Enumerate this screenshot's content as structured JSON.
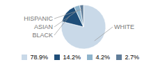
{
  "chart_data": {
    "type": "pie",
    "categories": [
      "WHITE",
      "BLACK",
      "ASIAN",
      "HISPANIC"
    ],
    "values": [
      78.9,
      14.2,
      4.2,
      2.7
    ],
    "colors": [
      "#c9d9e8",
      "#1f4e79",
      "#8fb4cc",
      "#607d99"
    ],
    "value_labels": [
      "78.9%",
      "14.2%",
      "4.2%",
      "2.7%"
    ],
    "legend": "bottom"
  }
}
